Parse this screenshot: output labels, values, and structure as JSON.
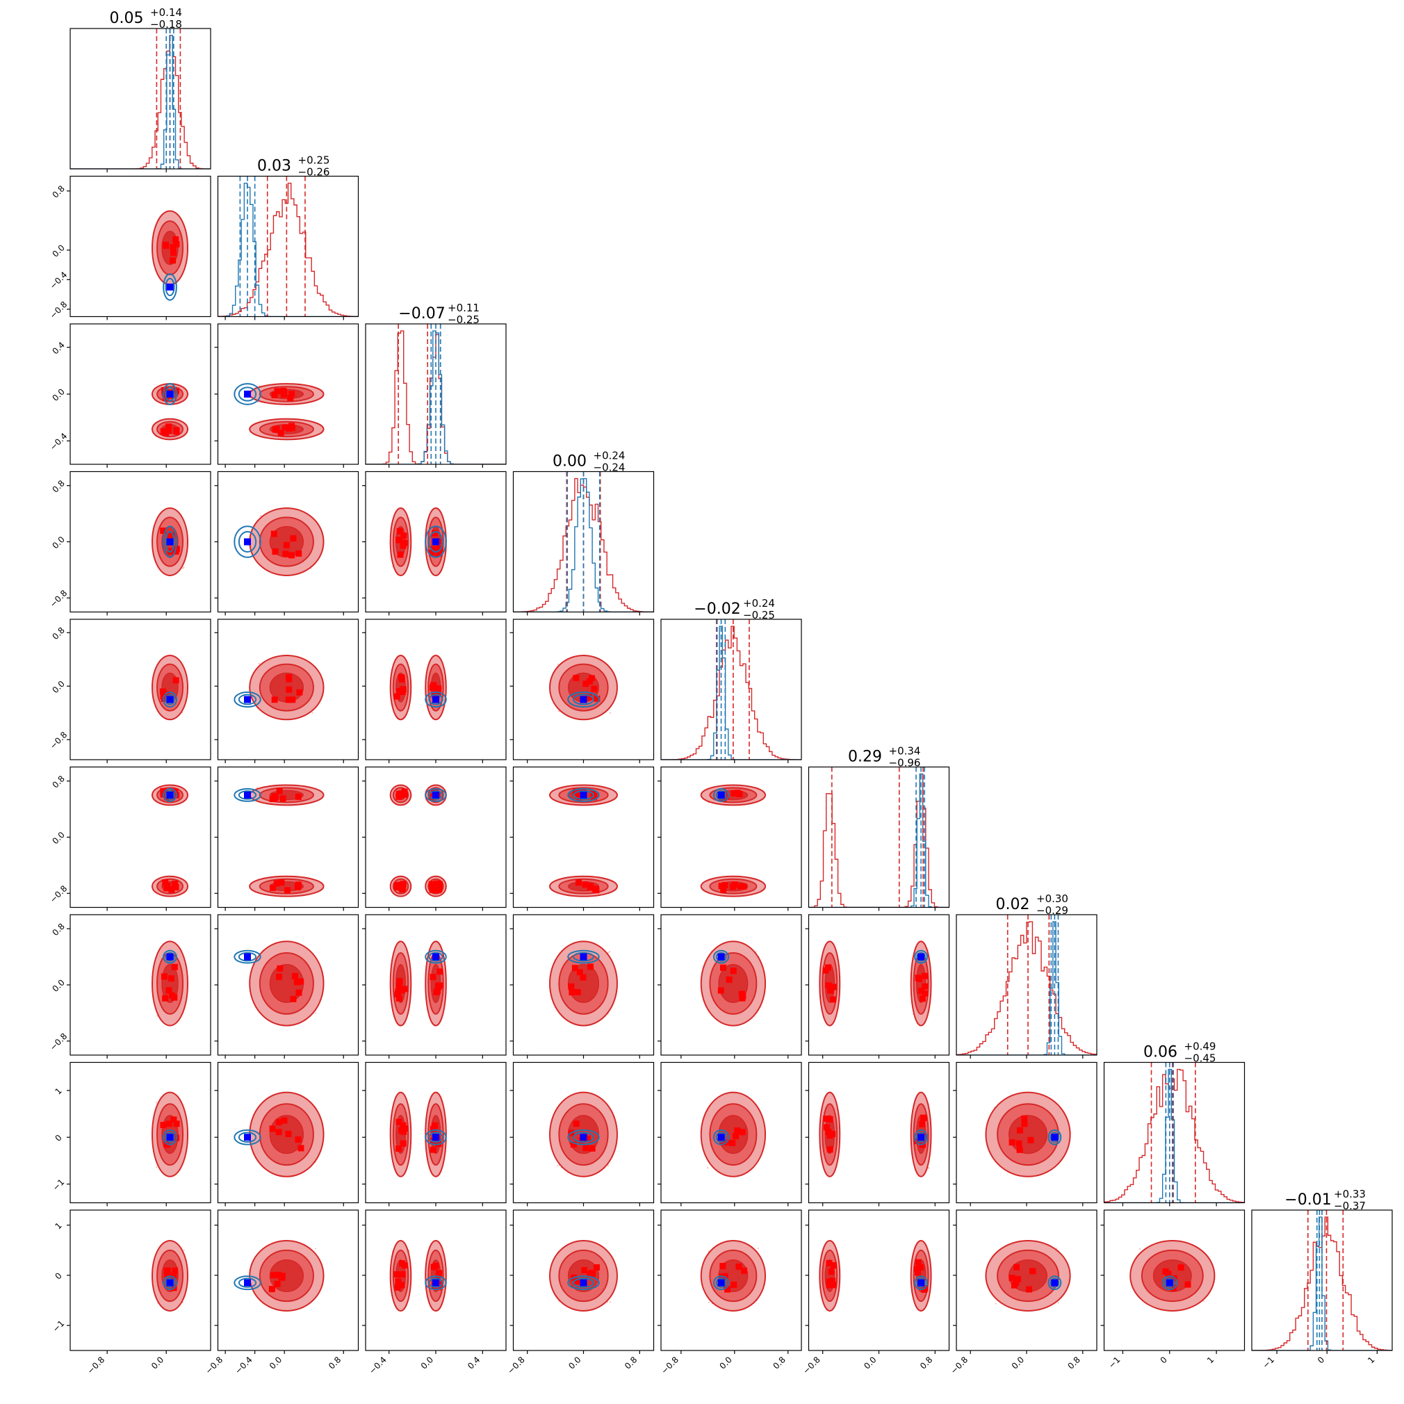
{
  "chart_data": {
    "type": "corner",
    "dims": 9,
    "colors": {
      "red": "#d62728",
      "blue": "#1f77b4",
      "marker_blue": "#0000ff",
      "marker_red": "#ff0000"
    },
    "titles": [
      {
        "value": "0.05",
        "plus": "+0.14",
        "minus": "−0.18"
      },
      {
        "value": "0.03",
        "plus": "+0.25",
        "minus": "−0.26"
      },
      {
        "value": "−0.07",
        "plus": "+0.11",
        "minus": "−0.25"
      },
      {
        "value": "0.00",
        "plus": "+0.24",
        "minus": "−0.24"
      },
      {
        "value": "−0.02",
        "plus": "+0.24",
        "minus": "−0.25"
      },
      {
        "value": "0.29",
        "plus": "+0.34",
        "minus": "−0.96"
      },
      {
        "value": "0.02",
        "plus": "+0.30",
        "minus": "−0.29"
      },
      {
        "value": "0.06",
        "plus": "+0.49",
        "minus": "−0.45"
      },
      {
        "value": "−0.01",
        "plus": "+0.33",
        "minus": "−0.37"
      }
    ],
    "ranges": [
      [
        -1.3,
        0.6
      ],
      [
        -0.9,
        1.0
      ],
      [
        -0.6,
        0.6
      ],
      [
        -1.0,
        1.0
      ],
      [
        -1.1,
        1.0
      ],
      [
        -1.0,
        1.0
      ],
      [
        -1.0,
        1.0
      ],
      [
        -1.4,
        1.6
      ],
      [
        -1.5,
        1.3
      ]
    ],
    "ticks": [
      [
        {
          "v": -0.8,
          "t": "−0.8"
        },
        {
          "v": 0.0,
          "t": "0.0"
        }
      ],
      [
        {
          "v": -0.8,
          "t": "−0.8"
        },
        {
          "v": -0.4,
          "t": "−0.4"
        },
        {
          "v": 0.0,
          "t": "0.0"
        },
        {
          "v": 0.8,
          "t": "0.8"
        }
      ],
      [
        {
          "v": -0.4,
          "t": "−0.4"
        },
        {
          "v": 0.0,
          "t": "0.0"
        },
        {
          "v": 0.4,
          "t": "0.4"
        }
      ],
      [
        {
          "v": -0.8,
          "t": "−0.8"
        },
        {
          "v": 0.0,
          "t": "0.0"
        },
        {
          "v": 0.8,
          "t": "0.8"
        }
      ],
      [
        {
          "v": -0.8,
          "t": "−0.8"
        },
        {
          "v": 0.0,
          "t": "0.0"
        },
        {
          "v": 0.8,
          "t": "0.8"
        }
      ],
      [
        {
          "v": -0.8,
          "t": "−0.8"
        },
        {
          "v": 0.0,
          "t": "0.0"
        },
        {
          "v": 0.8,
          "t": "0.8"
        }
      ],
      [
        {
          "v": -0.8,
          "t": "−0.8"
        },
        {
          "v": 0.0,
          "t": "0.0"
        },
        {
          "v": 0.8,
          "t": "0.8"
        }
      ],
      [
        {
          "v": -1,
          "t": "−1"
        },
        {
          "v": 0,
          "t": "0"
        },
        {
          "v": 1,
          "t": "1"
        }
      ],
      [
        {
          "v": -1,
          "t": "−1"
        },
        {
          "v": 0,
          "t": "0"
        },
        {
          "v": 1,
          "t": "1"
        }
      ]
    ],
    "truth_blue": [
      0.05,
      -0.5,
      0.0,
      0.0,
      -0.2,
      0.6,
      0.4,
      0.0,
      -0.15
    ],
    "red_modes": [
      [
        0.05
      ],
      [
        0.03
      ],
      [
        -0.3,
        0.0
      ],
      [
        0.0
      ],
      [
        -0.02
      ],
      [
        -0.7,
        0.6
      ],
      [
        0.02
      ],
      [
        0.06
      ],
      [
        -0.01
      ]
    ],
    "red_sigma": [
      0.12,
      0.25,
      0.08,
      0.24,
      0.24,
      0.13,
      0.3,
      0.45,
      0.35
    ],
    "blue_sigma": [
      0.04,
      0.08,
      0.04,
      0.1,
      0.05,
      0.04,
      0.04,
      0.07,
      0.06
    ],
    "red_quantiles": [
      [
        -0.13,
        0.05,
        0.19
      ],
      [
        -0.23,
        0.03,
        0.28
      ],
      [
        -0.32,
        -0.07,
        0.04
      ],
      [
        -0.24,
        0.0,
        0.24
      ],
      [
        -0.27,
        -0.02,
        0.22
      ],
      [
        -0.67,
        0.29,
        0.63
      ],
      [
        -0.27,
        0.02,
        0.32
      ],
      [
        -0.39,
        0.06,
        0.55
      ],
      [
        -0.38,
        -0.01,
        0.32
      ]
    ],
    "blue_quantiles": [
      [
        0.0,
        0.05,
        0.1
      ],
      [
        -0.6,
        -0.5,
        -0.4
      ],
      [
        -0.04,
        0.0,
        0.04
      ],
      [
        -0.23,
        0.0,
        0.23
      ],
      [
        -0.26,
        -0.2,
        -0.14
      ],
      [
        0.53,
        0.6,
        0.65
      ],
      [
        0.35,
        0.4,
        0.45
      ],
      [
        -0.08,
        0.0,
        0.08
      ],
      [
        -0.2,
        -0.15,
        -0.1
      ]
    ]
  }
}
